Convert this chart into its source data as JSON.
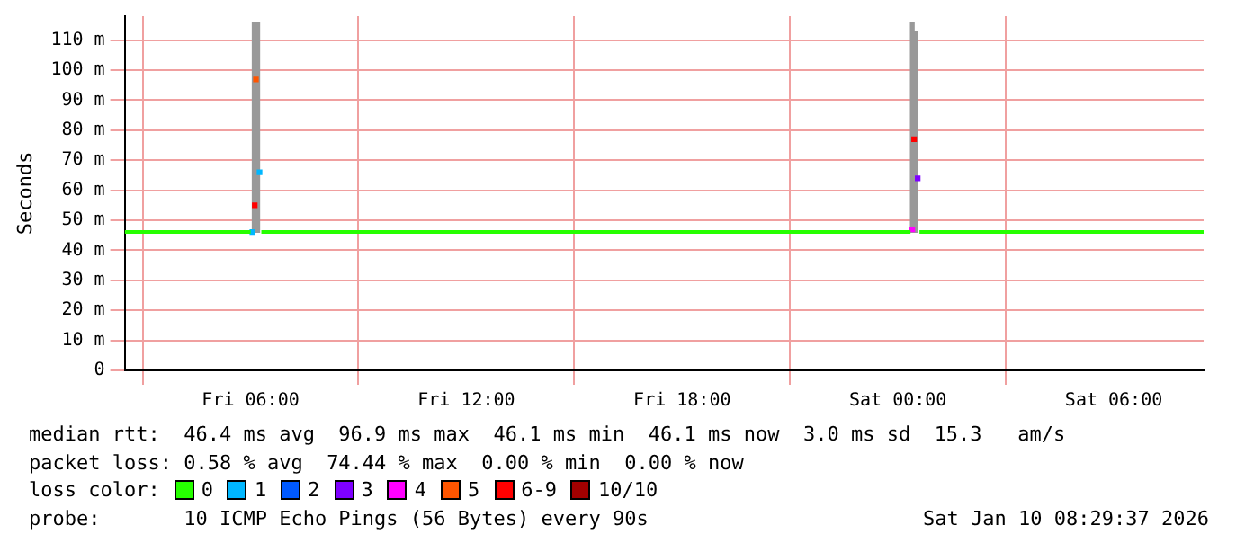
{
  "chart_data": {
    "type": "line",
    "ylabel": "Seconds",
    "legend_title": "loss color:",
    "legend": "bottom left",
    "grid": true,
    "xlim": [
      "2026-01-09T02:30",
      "2026-01-10T08:30"
    ],
    "xticks": [
      {
        "value": "2026-01-09T06:00",
        "label": "Fri 06:00"
      },
      {
        "value": "2026-01-09T12:00",
        "label": "Fri 12:00"
      },
      {
        "value": "2026-01-09T18:00",
        "label": "Fri 18:00"
      },
      {
        "value": "2026-01-10T00:00",
        "label": "Sat 00:00"
      },
      {
        "value": "2026-01-10T06:00",
        "label": "Sat 06:00"
      }
    ],
    "ylim": [
      0,
      118
    ],
    "yticks": [
      0,
      {
        "value": 10,
        "label": "10 m"
      },
      {
        "value": 20,
        "label": "20 m"
      },
      {
        "value": 30,
        "label": "30 m"
      },
      {
        "value": 40,
        "label": "40 m"
      },
      {
        "value": 50,
        "label": "50 m"
      },
      {
        "value": 60,
        "label": "60 m"
      },
      {
        "value": 70,
        "label": "70 m"
      },
      {
        "value": 80,
        "label": "80 m"
      },
      {
        "value": 90,
        "label": "90 m"
      },
      {
        "value": 100,
        "label": "100 m"
      },
      {
        "value": 110,
        "label": "110 m"
      }
    ],
    "series": [
      {
        "type": "bar",
        "color": "#999999",
        "x": [
          "2026-01-09T06:06",
          "2026-01-09T06:12",
          "2026-01-10T00:24",
          "2026-01-10T00:30"
        ],
        "base": [
          46,
          46,
          46,
          46
        ],
        "values": [
          70,
          70,
          70,
          67
        ]
      },
      {
        "name": "0",
        "color": "#26ff00",
        "x": [
          "2026-01-09T02:30",
          "2026-01-09T06:00",
          "2026-01-09T06:03",
          "2026-01-09T06:18",
          "2026-01-10T00:21",
          "2026-01-10T00:24",
          "2026-01-10T00:36",
          "2026-01-10T08:30"
        ],
        "values": [
          46.1,
          46.1,
          null,
          46.1,
          46.1,
          null,
          46.1,
          46.1
        ]
      },
      {
        "name": "1",
        "type": "scatter",
        "color": "#00b7ff",
        "x": [
          "2026-01-09T06:03",
          "2026-01-09T06:15"
        ],
        "values": [
          46.1,
          66
        ]
      },
      {
        "name": "2",
        "type": "scatter",
        "color": "#0059ff"
      },
      {
        "name": "3",
        "type": "scatter",
        "color": "#7e00ff",
        "x": [
          "2026-01-10T00:33"
        ],
        "values": [
          64
        ]
      },
      {
        "name": "4",
        "type": "scatter",
        "color": "#ff00ff",
        "x": [
          "2026-01-10T00:24"
        ],
        "values": [
          47
        ]
      },
      {
        "name": "5",
        "type": "scatter",
        "color": "#ff5500",
        "x": [
          "2026-01-09T06:09"
        ],
        "values": [
          96.9
        ]
      },
      {
        "name": "6-9",
        "type": "scatter",
        "color": "#ff0000",
        "x": [
          "2026-01-09T06:07",
          "2026-01-10T00:27"
        ],
        "values": [
          55,
          77
        ]
      },
      {
        "name": "10/10",
        "type": "scatter",
        "color": "#a10000"
      }
    ],
    "annotations": [
      "median rtt:  46.4 ms avg  96.9 ms max  46.1 ms min  46.1 ms now  3.0 ms sd  15.3   am/s",
      "packet loss: 0.58 % avg  74.44 % max  0.00 % min  0.00 % now",
      "probe:       10 ICMP Echo Pings (56 Bytes) every 90s",
      "Sat Jan 10 08:29:37 2026"
    ]
  }
}
